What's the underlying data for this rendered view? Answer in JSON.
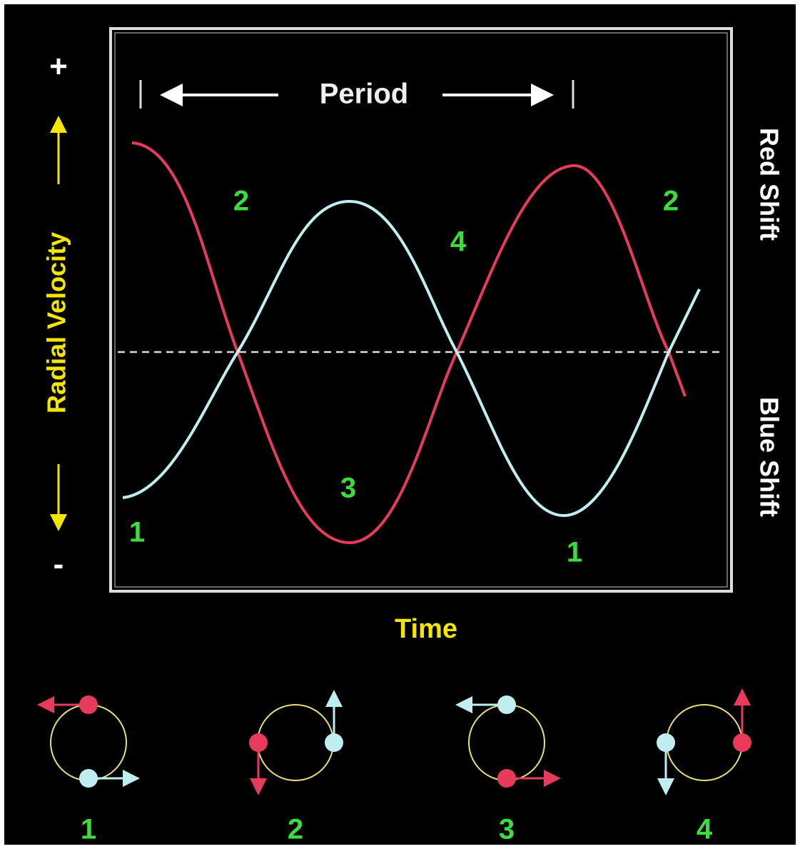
{
  "plot": {
    "period_label": "Period",
    "y_label": "Radial Velocity",
    "y_plus": "+",
    "y_minus": "-",
    "x_label": "Time",
    "right_top": "Red Shift",
    "right_bottom": "Blue Shift",
    "phase_labels": [
      "1",
      "2",
      "3",
      "4",
      "2",
      "1"
    ]
  },
  "orbits": [
    {
      "label": "1"
    },
    {
      "label": "2"
    },
    {
      "label": "3"
    },
    {
      "label": "4"
    }
  ]
}
